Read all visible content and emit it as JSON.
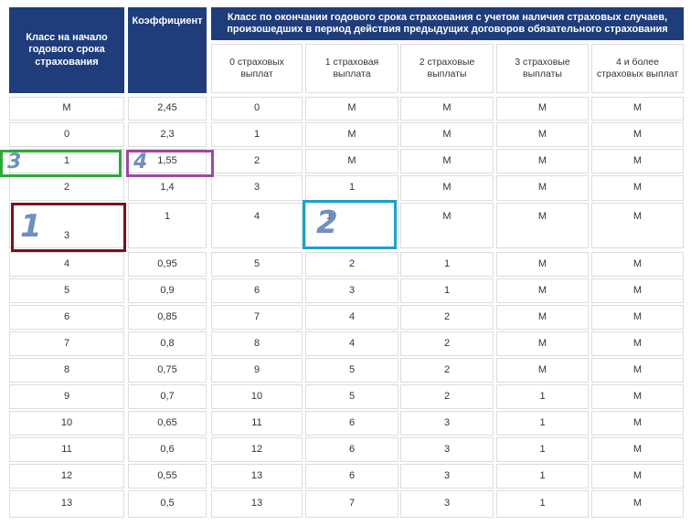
{
  "table": {
    "header_class_start": "Класс на начало годового срока страхования",
    "header_coefficient": "Коэффициент",
    "header_class_end": "Класс по окончании годового срока страхования с учетом наличия страховых случаев, произошедших в период действия предыдущих договоров обязательного страхования",
    "sub_headers": [
      "0 страховых выплат",
      "1 страховая выплата",
      "2 страховые выплаты",
      "3 страховые выплаты",
      "4 и более страховых выплат"
    ],
    "rows": [
      [
        "М",
        "2,45",
        "0",
        "М",
        "М",
        "М",
        "М"
      ],
      [
        "0",
        "2,3",
        "1",
        "М",
        "М",
        "М",
        "М"
      ],
      [
        "1",
        "1,55",
        "2",
        "М",
        "М",
        "М",
        "М"
      ],
      [
        "2",
        "1,4",
        "3",
        "1",
        "М",
        "М",
        "М"
      ],
      [
        "3",
        "1",
        "4",
        "1",
        "М",
        "М",
        "М"
      ],
      [
        "4",
        "0,95",
        "5",
        "2",
        "1",
        "М",
        "М"
      ],
      [
        "5",
        "0,9",
        "6",
        "3",
        "1",
        "М",
        "М"
      ],
      [
        "6",
        "0,85",
        "7",
        "4",
        "2",
        "М",
        "М"
      ],
      [
        "7",
        "0,8",
        "8",
        "4",
        "2",
        "М",
        "М"
      ],
      [
        "8",
        "0,75",
        "9",
        "5",
        "2",
        "М",
        "М"
      ],
      [
        "9",
        "0,7",
        "10",
        "5",
        "2",
        "1",
        "М"
      ],
      [
        "10",
        "0,65",
        "11",
        "6",
        "3",
        "1",
        "М"
      ],
      [
        "11",
        "0,6",
        "12",
        "6",
        "3",
        "1",
        "М"
      ],
      [
        "12",
        "0,55",
        "13",
        "6",
        "3",
        "1",
        "М"
      ],
      [
        "13",
        "0,5",
        "13",
        "7",
        "3",
        "1",
        "М"
      ]
    ]
  },
  "annotations": [
    {
      "label": "1",
      "color": "#7a1020"
    },
    {
      "label": "2",
      "color": "#1aa3c8"
    },
    {
      "label": "3",
      "color": "#2fa83a"
    },
    {
      "label": "4",
      "color": "#9b4aa0"
    }
  ],
  "colors": {
    "header_bg": "#1f3d7a",
    "header_text": "#ffffff",
    "border": "#dcdcdc",
    "text": "#333333"
  }
}
